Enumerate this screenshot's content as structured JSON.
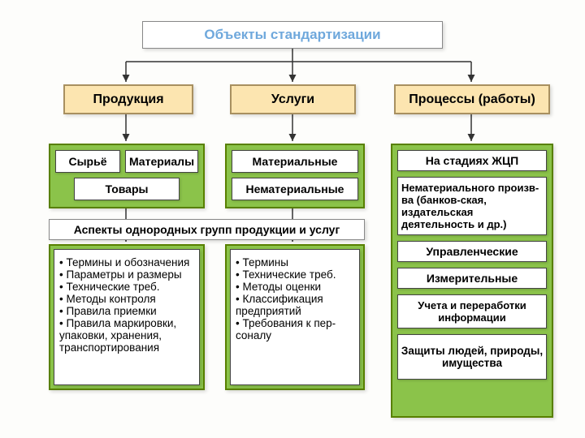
{
  "title": "Объекты стандартизации",
  "categories": {
    "produkciya": "Продукция",
    "uslugi": "Услуги",
    "processy": "Процессы (работы)"
  },
  "prod_subs": {
    "syrye": "Сырьё",
    "materialy": "Материалы",
    "tovary": "Товары"
  },
  "serv_subs": {
    "mat": "Материальные",
    "nemat": "Нематериальные"
  },
  "aspects_header": "Аспекты однородных групп продукции и услуг",
  "prod_aspects": [
    "Термины и обозначения",
    "Параметры и размеры",
    "Технические треб.",
    "Методы контроля",
    "Правила приемки",
    "Правила маркировки, упаковки, хранения, транспортирования"
  ],
  "serv_aspects": [
    "Термины",
    "Технические треб.",
    "Методы оценки",
    "Классификация предприятий",
    "Требования к пер-соналу"
  ],
  "proc_subs": {
    "stadii": "На стадиях ЖЦП",
    "nemat_proizv": "Нематериального произв-ва (банков-ская, издательская деятельность и др.)",
    "uprav": "Управленческие",
    "izmer": "Измерительные",
    "uchet": "Учета и переработки информации",
    "zashita": "Защиты людей, природы, имущества"
  },
  "colors": {
    "title": "#6fa8dc",
    "cat_bg": "#fce5b0",
    "green": "#8bc34a",
    "green_border": "#588000"
  }
}
